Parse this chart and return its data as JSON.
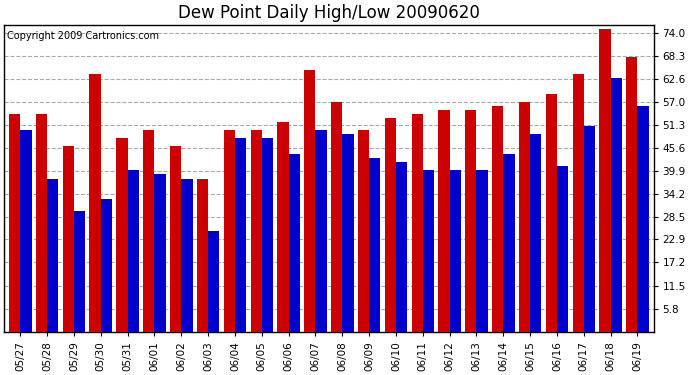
{
  "title": "Dew Point Daily High/Low 20090620",
  "copyright": "Copyright 2009 Cartronics.com",
  "background_color": "#ffffff",
  "plot_bg_color": "#ffffff",
  "grid_color": "#aaaaaa",
  "categories": [
    "05/27",
    "05/28",
    "05/29",
    "05/30",
    "05/31",
    "06/01",
    "06/02",
    "06/03",
    "06/04",
    "06/05",
    "06/06",
    "06/07",
    "06/08",
    "06/09",
    "06/10",
    "06/11",
    "06/12",
    "06/13",
    "06/14",
    "06/15",
    "06/16",
    "06/17",
    "06/18",
    "06/19"
  ],
  "highs": [
    54,
    54,
    46,
    64,
    48,
    50,
    46,
    38,
    50,
    50,
    52,
    65,
    57,
    50,
    53,
    54,
    55,
    55,
    56,
    57,
    59,
    64,
    75,
    68
  ],
  "lows": [
    50,
    38,
    30,
    33,
    40,
    39,
    38,
    25,
    48,
    48,
    44,
    50,
    49,
    43,
    42,
    40,
    40,
    40,
    44,
    49,
    41,
    51,
    63,
    56
  ],
  "high_color": "#cc0000",
  "low_color": "#0000cc",
  "yticks": [
    5.8,
    11.5,
    17.2,
    22.9,
    28.5,
    34.2,
    39.9,
    45.6,
    51.3,
    57.0,
    62.6,
    68.3,
    74.0
  ],
  "ylim_min": 0,
  "ylim_max": 76,
  "bar_width": 0.42,
  "title_fontsize": 12,
  "tick_fontsize": 7.5,
  "copyright_fontsize": 7
}
